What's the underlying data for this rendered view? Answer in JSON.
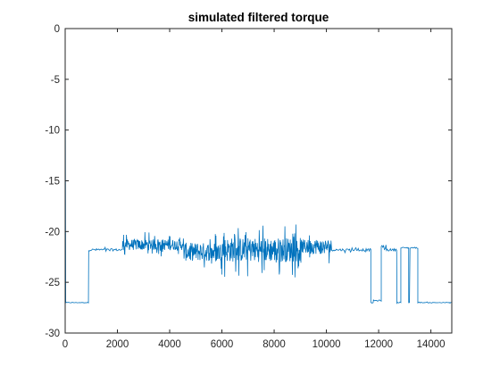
{
  "chart_data": {
    "type": "line",
    "title": "simulated filtered torque",
    "xlabel": "",
    "ylabel": "",
    "xlim": [
      0,
      14800
    ],
    "ylim": [
      -30,
      0
    ],
    "x_ticks": [
      0,
      2000,
      4000,
      6000,
      8000,
      10000,
      12000,
      14000
    ],
    "y_ticks": [
      0,
      -5,
      -10,
      -15,
      -20,
      -25,
      -30
    ],
    "x_tick_labels": [
      "0",
      "2000",
      "4000",
      "6000",
      "8000",
      "10000",
      "12000",
      "14000"
    ],
    "y_tick_labels": [
      "0",
      "-5",
      "-10",
      "-15",
      "-20",
      "-25",
      "-30"
    ],
    "grid": false,
    "legend": "none",
    "series": [
      {
        "color": "#0072BD",
        "segments": [
          {
            "x_start": 0,
            "x_end": 20,
            "base": 0,
            "noise": 0
          },
          {
            "x_start": 20,
            "x_end": 900,
            "base": -27.0,
            "noise": 0.05
          },
          {
            "x_start": 900,
            "x_end": 2200,
            "base": -21.8,
            "noise": 0.2
          },
          {
            "x_start": 2200,
            "x_end": 4500,
            "base": -21.3,
            "noise": 0.9
          },
          {
            "x_start": 4500,
            "x_end": 6000,
            "base": -22.0,
            "noise": 1.5
          },
          {
            "x_start": 6000,
            "x_end": 9000,
            "base": -21.8,
            "noise": 2.0
          },
          {
            "x_start": 9000,
            "x_end": 10200,
            "base": -21.5,
            "noise": 1.2
          },
          {
            "x_start": 10200,
            "x_end": 11700,
            "base": -21.8,
            "noise": 0.2
          },
          {
            "x_start": 11700,
            "x_end": 11800,
            "base": -27.0,
            "noise": 0.1
          },
          {
            "x_start": 11800,
            "x_end": 12100,
            "base": -26.8,
            "noise": 0.1
          },
          {
            "x_start": 12100,
            "x_end": 12300,
            "base": -21.6,
            "noise": 0.4
          },
          {
            "x_start": 12300,
            "x_end": 12700,
            "base": -21.8,
            "noise": 0.2
          },
          {
            "x_start": 12700,
            "x_end": 12850,
            "base": -27.0,
            "noise": 0.05
          },
          {
            "x_start": 12850,
            "x_end": 13150,
            "base": -21.6,
            "noise": 0.1
          },
          {
            "x_start": 13150,
            "x_end": 13200,
            "base": -27.0,
            "noise": 0.05
          },
          {
            "x_start": 13200,
            "x_end": 13500,
            "base": -21.6,
            "noise": 0.1
          },
          {
            "x_start": 13500,
            "x_end": 14800,
            "base": -27.0,
            "noise": 0.05
          }
        ]
      }
    ]
  }
}
